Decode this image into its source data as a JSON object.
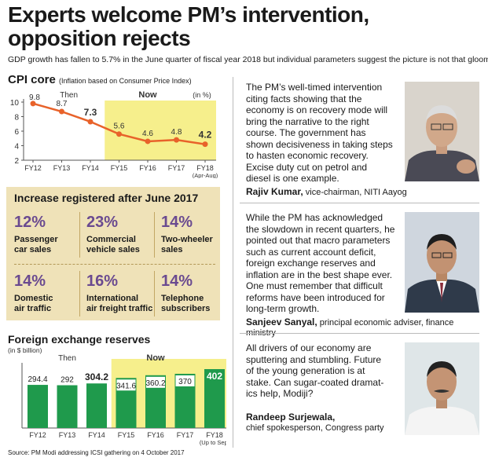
{
  "header": {
    "title_line1": "Experts welcome PM’s intervention,",
    "title_line2": "opposition rejects",
    "subtitle": "GDP growth has fallen to 5.7% in the June quarter of fiscal year 2018 but individual parameters suggest the picture is not that gloomy."
  },
  "cpi": {
    "title": "CPI core",
    "title_note": "(Inflation based on Consumer Price Index)",
    "then_label": "Then",
    "now_label": "Now",
    "unit": "(in %)"
  },
  "increase": {
    "title": "Increase registered after June 2017",
    "stats": [
      {
        "pct": "12%",
        "line1": "Passenger",
        "line2": "car sales"
      },
      {
        "pct": "23%",
        "line1": "Commercial",
        "line2": "vehicle sales"
      },
      {
        "pct": "14%",
        "line1": "Two-wheeler",
        "line2": "sales"
      },
      {
        "pct": "14%",
        "line1": "Domestic",
        "line2": "air traffic"
      },
      {
        "pct": "16%",
        "line1": "International",
        "line2": "air freight traffic"
      },
      {
        "pct": "14%",
        "line1": "Telephone",
        "line2": "subscribers"
      }
    ]
  },
  "fx": {
    "title": "Foreign exchange reserves",
    "unit": "(in $ billion)",
    "then_label": "Then",
    "now_label": "Now"
  },
  "source": "Source: PM Modi addressing ICSI gathering on 4 October 2017",
  "quotes": [
    {
      "lines": [
        "The PM’s well-timed intervention",
        "citing facts showing that the",
        "economy is on recovery mode will",
        "bring the narrative to the right",
        "course. The government has",
        "shown decisiveness in taking steps",
        "to hasten economic recovery.",
        "Excise duty cut on petrol and",
        "diesel is one example."
      ],
      "name": "Rajiv Kumar,",
      "role": " vice-chairman, NITI Aayog"
    },
    {
      "lines": [
        "While the PM has acknowledged",
        "the slowdown in recent quarters, he",
        "pointed out that macro parameters",
        "such as current account deficit,",
        "foreign exchange reserves and",
        "inflation are in the best shape ever.",
        "One must remember that difficult",
        "reforms have been introduced for",
        "long-term growth."
      ],
      "name": "Sanjeev Sanyal,",
      "role": " principal economic adviser, finance ministry"
    },
    {
      "lines": [
        "All drivers of our economy are",
        "sputtering and stumbling. Future",
        "of the young generation is at",
        "stake. Can sugar-coated dramat-",
        "ics help, Modiji?"
      ],
      "name": "Randeep Surjewala,",
      "role": "chief spokesperson, Congress party"
    }
  ],
  "colors": {
    "accent_orange": "#e8622a",
    "highlight_yellow": "#f6ef8c",
    "bar_green": "#1f9a4c",
    "purple": "#6a4a90",
    "panel_beige": "#efe2b8"
  },
  "chart_data": [
    {
      "type": "line",
      "title": "CPI core",
      "subtitle": "(Inflation based on Consumer Price Index)",
      "categories": [
        "FY12",
        "FY13",
        "FY14",
        "FY15",
        "FY16",
        "FY17",
        "FY18"
      ],
      "category_sublabels": [
        "",
        "",
        "",
        "",
        "",
        "",
        "(Apr-Aug)"
      ],
      "values": [
        9.8,
        8.7,
        7.3,
        5.6,
        4.6,
        4.8,
        4.2
      ],
      "value_labels": [
        "9.8",
        "8.7",
        "7.3",
        "5.6",
        "4.6",
        "4.8",
        "4.2"
      ],
      "bold_labels": [
        2,
        6
      ],
      "ylim": [
        2,
        10
      ],
      "yticks": [
        2,
        4,
        6,
        8,
        10
      ],
      "highlight_from": 3,
      "grid": false
    },
    {
      "type": "bar",
      "title": "Foreign exchange reserves",
      "ylabel": "(in $ billion)",
      "categories": [
        "FY12",
        "FY13",
        "FY14",
        "FY15",
        "FY16",
        "FY17",
        "FY18"
      ],
      "category_sublabels": [
        "",
        "",
        "",
        "",
        "",
        "",
        "(Up to Sep)"
      ],
      "values": [
        294.4,
        292,
        304.2,
        341.6,
        360.2,
        370,
        402
      ],
      "value_labels": [
        "294.4",
        "292",
        "304.2",
        "341.6",
        "360.2",
        "370",
        "402"
      ],
      "bold_labels": [
        2,
        6
      ],
      "ylim": [
        0,
        402
      ],
      "highlight_from": 3,
      "grid": false
    }
  ]
}
